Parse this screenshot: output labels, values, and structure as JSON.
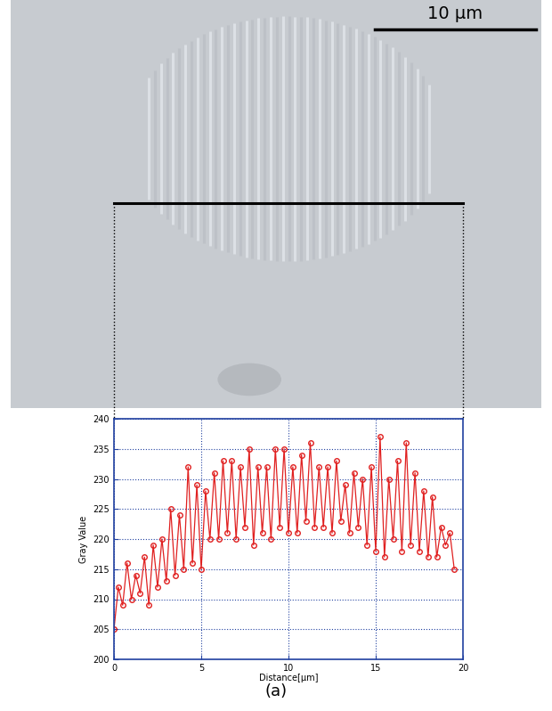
{
  "image": {
    "scale_bar_label": "10 μm"
  },
  "caption": "(a)",
  "chart_data": {
    "type": "line",
    "x_label": "Distance[μm]",
    "y_label": "Gray Value",
    "x": [
      0,
      0.25,
      0.5,
      0.75,
      1,
      1.25,
      1.5,
      1.75,
      2,
      2.25,
      2.5,
      2.75,
      3,
      3.25,
      3.5,
      3.75,
      4,
      4.25,
      4.5,
      4.75,
      5,
      5.25,
      5.5,
      5.75,
      6,
      6.25,
      6.5,
      6.75,
      7,
      7.25,
      7.5,
      7.75,
      8,
      8.25,
      8.5,
      8.75,
      9,
      9.25,
      9.5,
      9.75,
      10,
      10.25,
      10.5,
      10.75,
      11,
      11.25,
      11.5,
      11.75,
      12,
      12.25,
      12.5,
      12.75,
      13,
      13.25,
      13.5,
      13.75,
      14,
      14.25,
      14.5,
      14.75,
      15,
      15.25,
      15.5,
      15.75,
      16,
      16.25,
      16.5,
      16.75,
      17,
      17.25,
      17.5,
      17.75,
      18,
      18.25,
      18.5,
      18.75,
      19,
      19.25,
      19.5
    ],
    "values": [
      205,
      212,
      209,
      216,
      210,
      214,
      211,
      217,
      209,
      219,
      212,
      220,
      213,
      225,
      214,
      224,
      215,
      232,
      216,
      229,
      215,
      228,
      220,
      231,
      220,
      233,
      221,
      233,
      220,
      232,
      222,
      235,
      219,
      232,
      221,
      232,
      220,
      235,
      222,
      235,
      221,
      232,
      221,
      234,
      223,
      236,
      222,
      232,
      222,
      232,
      221,
      233,
      223,
      229,
      221,
      231,
      222,
      230,
      219,
      232,
      218,
      237,
      217,
      230,
      220,
      233,
      218,
      236,
      219,
      231,
      218,
      228,
      217,
      227,
      217,
      222,
      219,
      221,
      215
    ],
    "color": "#e02020",
    "marker": "circle",
    "line_style": "solid",
    "xlim": [
      0,
      20
    ],
    "xticks": [
      0,
      5,
      10,
      15,
      20
    ],
    "ylim": [
      200,
      240
    ],
    "yticks": [
      200,
      205,
      210,
      215,
      220,
      225,
      230,
      235,
      240
    ],
    "grid": true
  }
}
